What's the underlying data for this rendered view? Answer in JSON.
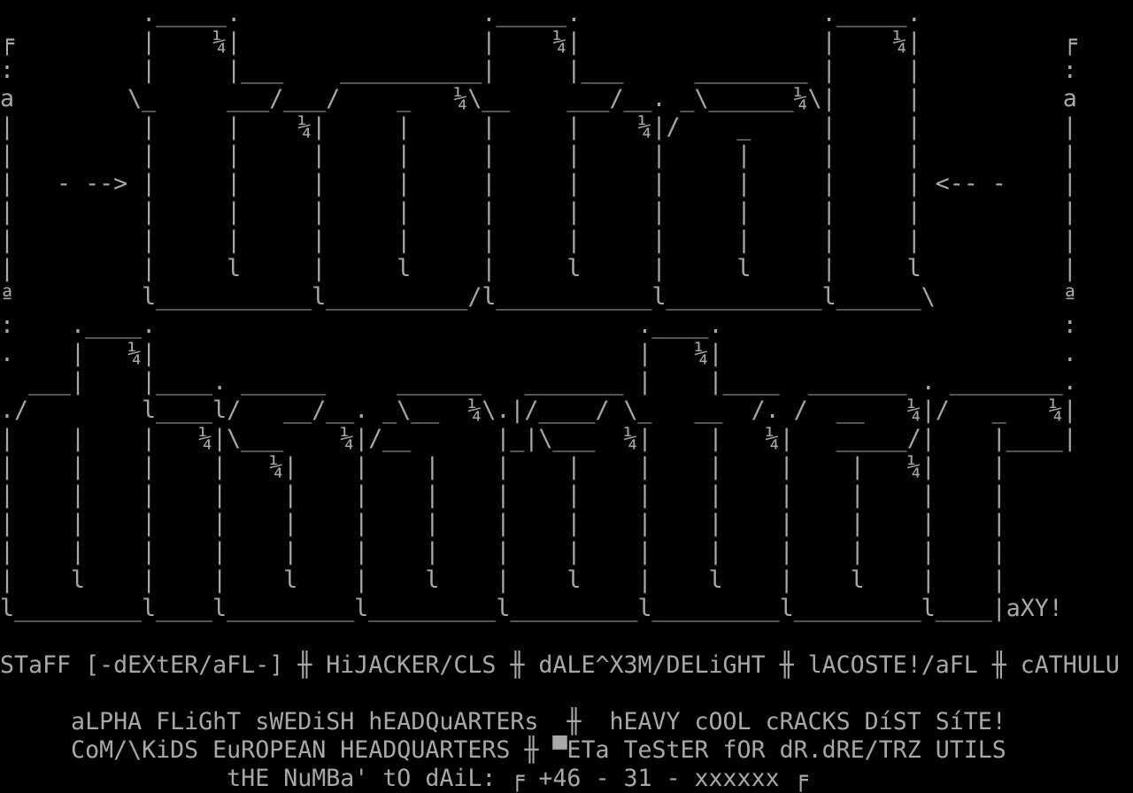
{
  "colors": {
    "background": "#000000",
    "foreground": "#a8a8a8"
  },
  "terminal": {
    "columns": 80,
    "row_count": 28,
    "rows": [
      "          ._____.                 ._____.                 ._____.",
      "╒         |    ¼|                 |    ¼|                 |    ¼|          ╒",
      ":         |     |___    __________|     |___     ________ |     |          :",
      "a        \\_     ___/___/    _   ¼\\__    ___/__. _\\______¼\\|     |          a",
      "|         |     |    ¼|     |     |     |    ¼|/    _     |     |          |",
      "|         |     |     |     |     |     |     |     |     |     |          |",
      "|   - --> |     |     |     |     |     |     |     |     |     | <-- -    |",
      "|         |     |     |     |     |     |     |     |     |     |          |",
      "|         |     |     |     |     |     |     |     |     |     |          |",
      "|         |     l     |     l     |     l     |     l     |     l          |",
      "ª         l___________l__________/l___________l___________l______\\         ª",
      ":    .____.                                  .____.                        :",
      ".    |   ¼|                                  |   ¼|                        .",
      "  ___|    |____. ______     ______   _______ |    |____  _______ . ________.",
      "./        l____l/   __/__. _\\__  ¼\\.|/____/ \\_   __  /. /  __   ¼|/   _   ¼|",
      "|    |    |   ¼|\\___    ¼|/__      |_|\\___  ¼|    |   ¼|   _____/|    |____|",
      "|    |    |    |   ¼|    |    |    |    |    |    |    |    |   ¼|    |",
      "|    |    |    |    |    |    |    |    |    |    |    |    |    |    |",
      "|    |    |    |    |    |    |    |    |    |    |    |    |    |    |",
      "|    |    |    |    |    |    |    |    |    |    |    |    |    |    |",
      "|    l    |    |    l    |    l    |    l    |    l    |    l    |    |",
      "l_________l____l_________l_________l_________l_________l_________l____|aXY!",
      "",
      "STaFF [-dEXtER/aFL-] ╫ HiJACKER/CLS ╫ dALE^X3M/DELiGHT ╫ lACOSTE!/aFL ╫ cATHULU",
      "",
      "     aLPHA FLiGhT sWEDiSH hEADQuARTERs  ╫  hEAVY cOOL cRACKS DíST SíTE!",
      "     CoM/\\KiDS EuROPEAN HEADQUARTERS ╫ ▀ETa TeStER fOR dR.dRE/TRZ UTILS",
      "                tHE NuMBa' tO dAiL: ╒ +46 - 31 - xxxxxx ╒"
    ]
  },
  "info": {
    "artist_signature": "aXY!",
    "staff_label": "STaFF",
    "staff_members": [
      "-dEXtER/aFL-",
      "HiJACKER/CLS",
      "dALE^X3M/DELiGHT",
      "lACOSTE!/aFL",
      "cATHULU"
    ],
    "separator_glyph": "╫",
    "site_lines": [
      "aLPHA FLiGhT sWEDiSH hEADQuARTERs",
      "hEAVY cOOL cRACKS DíST SíTE!",
      "CoM/\\KiDS EuROPEAN HEADQUARTERS",
      "▀ETa TeStER fOR dR.dRE/TRZ UTILS"
    ],
    "dial_label": "tHE NuMBa' tO dAiL:",
    "phone_number": "+46 - 31 - xxxxxx"
  }
}
